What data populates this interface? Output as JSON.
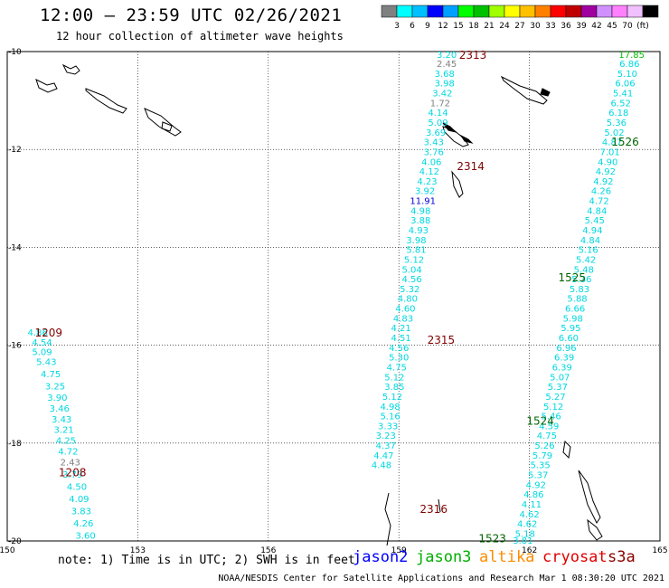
{
  "header": {
    "title": "12:00 – 23:59 UTC 02/26/2021",
    "subtitle": "12 hour collection of altimeter wave heights"
  },
  "colorbar": {
    "colors": [
      "#808080",
      "#00ffff",
      "#00c0ff",
      "#0000ff",
      "#00a0ff",
      "#00ff00",
      "#00c000",
      "#a0ff00",
      "#ffff00",
      "#ffc000",
      "#ff8000",
      "#ff0000",
      "#c00000",
      "#a000a0",
      "#d090ff",
      "#ff80ff",
      "#f0c0ff",
      "#000000"
    ],
    "ticks": [
      "3",
      "6",
      "9",
      "12",
      "15",
      "18",
      "21",
      "24",
      "27",
      "30",
      "33",
      "36",
      "39",
      "42",
      "45",
      "70",
      "(ft)"
    ]
  },
  "footer": {
    "note": "note: 1) Time is in UTC; 2) SWH is in feet",
    "credit": "NOAA/NESDIS Center for Satellite Applications and Research   Mar  1 08:30:20 UTC 2021",
    "satellites": [
      {
        "name": "jason2",
        "color": "#0000ff"
      },
      {
        "name": "jason3",
        "color": "#00b000"
      },
      {
        "name": "altika",
        "color": "#ff8c00"
      },
      {
        "name": "cryosat",
        "color": "#e00000"
      },
      {
        "name": "s3a",
        "color": "#8b0000"
      }
    ]
  },
  "chart_data": {
    "type": "scatter",
    "title": "12:00 – 23:59 UTC 02/26/2021",
    "subtitle": "12 hour collection of altimeter wave heights",
    "xlim": [
      150,
      165
    ],
    "ylim": [
      -20,
      -10
    ],
    "xticks": [
      "150",
      "153",
      "156",
      "159",
      "162",
      "165"
    ],
    "yticks": [
      "-10",
      "-12",
      "-14",
      "-16",
      "-18",
      "-20"
    ],
    "grid": true,
    "tracks": [
      {
        "id": "2313",
        "lat": -10.07,
        "lon": 160.7,
        "label": "2313",
        "color": "#800000"
      },
      {
        "id": "2314",
        "lat": -12.35,
        "lon": 160.65,
        "label": "2314",
        "color": "#800000"
      },
      {
        "id": "2315",
        "lat": -15.9,
        "lon": 159.97,
        "label": "2315",
        "color": "#800000"
      },
      {
        "id": "2316",
        "lat": -19.35,
        "lon": 159.8,
        "label": "2316",
        "color": "#800000"
      },
      {
        "id": "1209",
        "lat": -15.75,
        "lon": 150.95,
        "label": "1209",
        "color": "#800000"
      },
      {
        "id": "1208",
        "lat": -18.6,
        "lon": 151.5,
        "label": "1208",
        "color": "#800000"
      },
      {
        "id": "1526",
        "lat": -11.85,
        "lon": 164.2,
        "label": "1526",
        "color": "#006400"
      },
      {
        "id": "1525",
        "lat": -14.62,
        "lon": 162.98,
        "label": "1525",
        "color": "#006400"
      },
      {
        "id": "1524",
        "lat": -17.55,
        "lon": 162.25,
        "label": "1524",
        "color": "#006400"
      },
      {
        "id": "1523",
        "lat": -19.95,
        "lon": 161.15,
        "label": "1523",
        "color": "#006400"
      }
    ],
    "series": [
      {
        "name": "2313",
        "values": [
          {
            "lon": 160.1,
            "lat": -10.07,
            "swh": "3.20"
          },
          {
            "lon": 160.1,
            "lat": -10.26,
            "swh": "2.45"
          },
          {
            "lon": 160.05,
            "lat": -10.46,
            "swh": "3.68"
          },
          {
            "lon": 160.05,
            "lat": -10.66,
            "swh": "3.98"
          },
          {
            "lon": 160.0,
            "lat": -10.86,
            "swh": "3.42"
          },
          {
            "lon": 159.95,
            "lat": -11.06,
            "swh": "1.72"
          },
          {
            "lon": 159.9,
            "lat": -11.26,
            "swh": "4.14"
          },
          {
            "lon": 159.9,
            "lat": -11.46,
            "swh": "5.09"
          },
          {
            "lon": 159.85,
            "lat": -11.66,
            "swh": "3.69"
          },
          {
            "lon": 159.8,
            "lat": -11.86,
            "swh": "3.43"
          },
          {
            "lon": 159.8,
            "lat": -12.06,
            "swh": "3.76"
          },
          {
            "lon": 159.75,
            "lat": -12.26,
            "swh": "4.06"
          },
          {
            "lon": 159.7,
            "lat": -12.46,
            "swh": "4.12"
          },
          {
            "lon": 159.65,
            "lat": -12.66,
            "swh": "4.23"
          },
          {
            "lon": 159.6,
            "lat": -12.86,
            "swh": "3.92"
          },
          {
            "lon": 159.55,
            "lat": -13.06,
            "swh": "11.91"
          },
          {
            "lon": 159.5,
            "lat": -13.26,
            "swh": "4.98"
          },
          {
            "lon": 159.5,
            "lat": -13.46,
            "swh": "3.88"
          },
          {
            "lon": 159.45,
            "lat": -13.66,
            "swh": "4.93"
          },
          {
            "lon": 159.4,
            "lat": -13.86,
            "swh": "3.98"
          },
          {
            "lon": 159.4,
            "lat": -14.06,
            "swh": "5.81"
          },
          {
            "lon": 159.35,
            "lat": -14.26,
            "swh": "5.12"
          },
          {
            "lon": 159.3,
            "lat": -14.46,
            "swh": "5.04"
          },
          {
            "lon": 159.3,
            "lat": -14.66,
            "swh": "4.56"
          },
          {
            "lon": 159.25,
            "lat": -14.86,
            "swh": "5.32"
          },
          {
            "lon": 159.2,
            "lat": -15.06,
            "swh": "4.80"
          },
          {
            "lon": 159.15,
            "lat": -15.26,
            "swh": "4.60"
          },
          {
            "lon": 159.1,
            "lat": -15.46,
            "swh": "4.83"
          },
          {
            "lon": 159.05,
            "lat": -15.66,
            "swh": "4.21"
          },
          {
            "lon": 159.05,
            "lat": -15.86,
            "swh": "4.51"
          },
          {
            "lon": 159.0,
            "lat": -16.06,
            "swh": "4.56"
          },
          {
            "lon": 159.0,
            "lat": -16.26,
            "swh": "5.30"
          },
          {
            "lon": 158.95,
            "lat": -16.46,
            "swh": "4.75"
          },
          {
            "lon": 158.9,
            "lat": -16.66,
            "swh": "5.12"
          },
          {
            "lon": 158.9,
            "lat": -16.86,
            "swh": "3.85"
          },
          {
            "lon": 158.85,
            "lat": -17.06,
            "swh": "5.12"
          },
          {
            "lon": 158.8,
            "lat": -17.26,
            "swh": "4.98"
          },
          {
            "lon": 158.8,
            "lat": -17.46,
            "swh": "5.16"
          },
          {
            "lon": 158.75,
            "lat": -17.66,
            "swh": "3.33"
          },
          {
            "lon": 158.7,
            "lat": -17.86,
            "swh": "3.23"
          },
          {
            "lon": 158.7,
            "lat": -18.06,
            "swh": "4.37"
          },
          {
            "lon": 158.65,
            "lat": -18.26,
            "swh": "4.47"
          },
          {
            "lon": 158.6,
            "lat": -18.46,
            "swh": "4.48"
          }
        ]
      },
      {
        "name": "1526",
        "values": [
          {
            "lon": 164.35,
            "lat": -10.07,
            "swh": "17.85"
          },
          {
            "lon": 164.3,
            "lat": -10.26,
            "swh": "6.86"
          },
          {
            "lon": 164.25,
            "lat": -10.46,
            "swh": "5.10"
          },
          {
            "lon": 164.2,
            "lat": -10.66,
            "swh": "6.06"
          },
          {
            "lon": 164.15,
            "lat": -10.86,
            "swh": "5.41"
          },
          {
            "lon": 164.1,
            "lat": -11.06,
            "swh": "6.52"
          },
          {
            "lon": 164.05,
            "lat": -11.26,
            "swh": "6.18"
          },
          {
            "lon": 164.0,
            "lat": -11.46,
            "swh": "5.36"
          },
          {
            "lon": 163.95,
            "lat": -11.66,
            "swh": "5.02"
          },
          {
            "lon": 163.9,
            "lat": -11.86,
            "swh": "4.87"
          },
          {
            "lon": 163.85,
            "lat": -12.06,
            "swh": "7.01"
          },
          {
            "lon": 163.8,
            "lat": -12.26,
            "swh": "4.90"
          },
          {
            "lon": 163.75,
            "lat": -12.46,
            "swh": "4.92"
          },
          {
            "lon": 163.7,
            "lat": -12.66,
            "swh": "4.92"
          },
          {
            "lon": 163.65,
            "lat": -12.86,
            "swh": "4.26"
          },
          {
            "lon": 163.6,
            "lat": -13.06,
            "swh": "4.72"
          },
          {
            "lon": 163.55,
            "lat": -13.26,
            "swh": "4.84"
          },
          {
            "lon": 163.5,
            "lat": -13.46,
            "swh": "5.45"
          },
          {
            "lon": 163.45,
            "lat": -13.66,
            "swh": "4.94"
          },
          {
            "lon": 163.4,
            "lat": -13.86,
            "swh": "4.84"
          },
          {
            "lon": 163.35,
            "lat": -14.06,
            "swh": "5.16"
          },
          {
            "lon": 163.3,
            "lat": -14.26,
            "swh": "5.42"
          },
          {
            "lon": 163.25,
            "lat": -14.46,
            "swh": "5.48"
          },
          {
            "lon": 163.2,
            "lat": -14.66,
            "swh": "5.36"
          },
          {
            "lon": 163.15,
            "lat": -14.86,
            "swh": "5.83"
          },
          {
            "lon": 163.1,
            "lat": -15.06,
            "swh": "5.88"
          },
          {
            "lon": 163.05,
            "lat": -15.26,
            "swh": "6.66"
          },
          {
            "lon": 163.0,
            "lat": -15.46,
            "swh": "5.98"
          },
          {
            "lon": 162.95,
            "lat": -15.66,
            "swh": "5.95"
          },
          {
            "lon": 162.9,
            "lat": -15.86,
            "swh": "6.60"
          },
          {
            "lon": 162.85,
            "lat": -16.06,
            "swh": "6.96"
          },
          {
            "lon": 162.8,
            "lat": -16.26,
            "swh": "6.39"
          },
          {
            "lon": 162.75,
            "lat": -16.46,
            "swh": "6.39"
          },
          {
            "lon": 162.7,
            "lat": -16.66,
            "swh": "5.07"
          },
          {
            "lon": 162.65,
            "lat": -16.86,
            "swh": "5.37"
          },
          {
            "lon": 162.6,
            "lat": -17.06,
            "swh": "5.27"
          },
          {
            "lon": 162.55,
            "lat": -17.26,
            "swh": "5.12"
          },
          {
            "lon": 162.5,
            "lat": -17.46,
            "swh": "5.46"
          },
          {
            "lon": 162.45,
            "lat": -17.66,
            "swh": "4.59"
          },
          {
            "lon": 162.4,
            "lat": -17.86,
            "swh": "4.75"
          },
          {
            "lon": 162.35,
            "lat": -18.06,
            "swh": "5.26"
          },
          {
            "lon": 162.3,
            "lat": -18.26,
            "swh": "5.79"
          },
          {
            "lon": 162.25,
            "lat": -18.46,
            "swh": "5.35"
          },
          {
            "lon": 162.2,
            "lat": -18.66,
            "swh": "5.37"
          },
          {
            "lon": 162.15,
            "lat": -18.86,
            "swh": "4.92"
          },
          {
            "lon": 162.1,
            "lat": -19.06,
            "swh": "4.86"
          },
          {
            "lon": 162.05,
            "lat": -19.26,
            "swh": "4.11"
          },
          {
            "lon": 162.0,
            "lat": -19.46,
            "swh": "4.62"
          },
          {
            "lon": 161.95,
            "lat": -19.66,
            "swh": "4.62"
          },
          {
            "lon": 161.9,
            "lat": -19.86,
            "swh": "5.18"
          },
          {
            "lon": 161.85,
            "lat": -20.0,
            "swh": "3.81"
          }
        ]
      },
      {
        "name": "1209",
        "values": [
          {
            "lon": 150.7,
            "lat": -15.75,
            "swh": "4.86"
          },
          {
            "lon": 150.8,
            "lat": -15.95,
            "swh": "4.54"
          },
          {
            "lon": 150.8,
            "lat": -16.15,
            "swh": "5.09"
          },
          {
            "lon": 150.9,
            "lat": -16.35,
            "swh": "5.43"
          },
          {
            "lon": 151.0,
            "lat": -16.6,
            "swh": "4.75"
          },
          {
            "lon": 151.1,
            "lat": -16.85,
            "swh": "3.25"
          },
          {
            "lon": 151.15,
            "lat": -17.08,
            "swh": "3.90"
          },
          {
            "lon": 151.2,
            "lat": -17.3,
            "swh": "3.46"
          },
          {
            "lon": 151.25,
            "lat": -17.52,
            "swh": "3.43"
          },
          {
            "lon": 151.3,
            "lat": -17.74,
            "swh": "3.21"
          },
          {
            "lon": 151.35,
            "lat": -17.96,
            "swh": "4.25"
          },
          {
            "lon": 151.4,
            "lat": -18.18,
            "swh": "4.72"
          },
          {
            "lon": 151.45,
            "lat": -18.4,
            "swh": "2.43"
          },
          {
            "lon": 151.5,
            "lat": -18.65,
            "swh": "3.79"
          },
          {
            "lon": 151.6,
            "lat": -18.9,
            "swh": "4.50"
          },
          {
            "lon": 151.65,
            "lat": -19.15,
            "swh": "4.09"
          },
          {
            "lon": 151.7,
            "lat": -19.4,
            "swh": "3.83"
          },
          {
            "lon": 151.75,
            "lat": -19.65,
            "swh": "4.26"
          },
          {
            "lon": 151.8,
            "lat": -19.9,
            "swh": "3.60"
          }
        ]
      }
    ]
  }
}
